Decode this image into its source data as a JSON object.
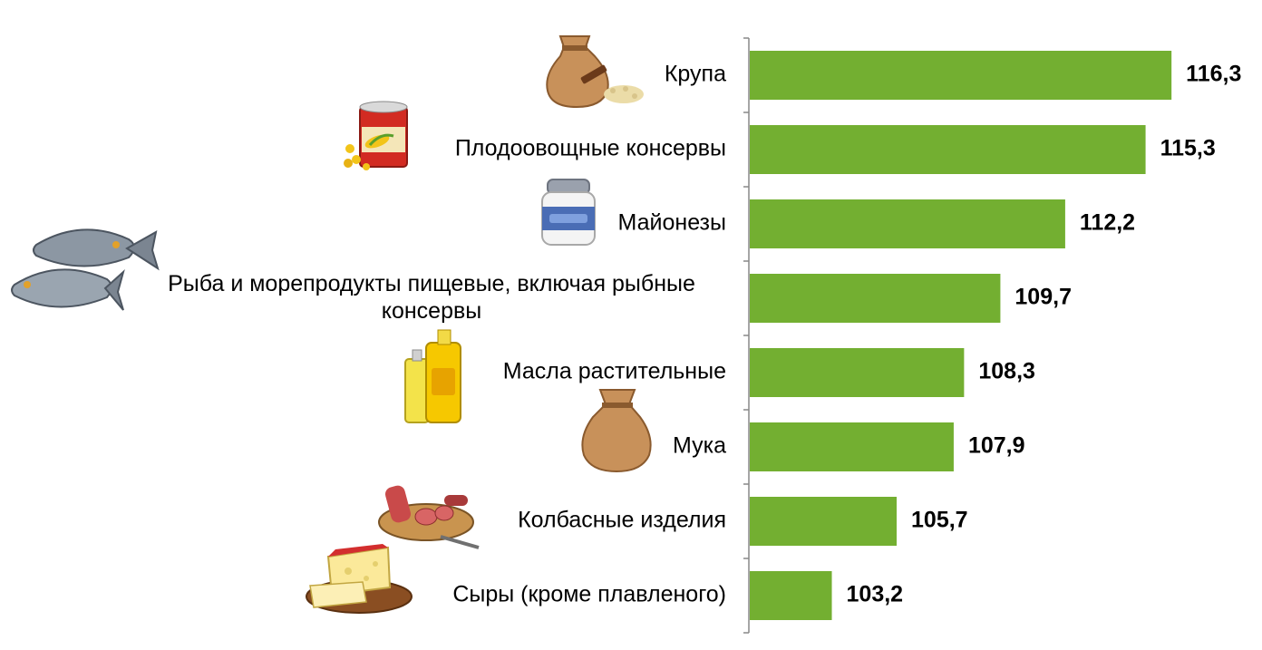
{
  "chart_data": {
    "type": "bar",
    "orientation": "horizontal",
    "categories": [
      "Крупа",
      "Плодоовощные консервы",
      "Майонезы",
      "Рыба и морепродукты пищевые, включая рыбные консервы",
      "Масла растительные",
      "Мука",
      "Колбасные изделия",
      "Сыры (кроме плавленого)"
    ],
    "values": [
      116.3,
      115.3,
      112.2,
      109.7,
      108.3,
      107.9,
      105.7,
      103.2
    ],
    "value_labels": [
      "116,3",
      "115,3",
      "112,2",
      "109,7",
      "108,3",
      "107,9",
      "105,7",
      "103,2"
    ],
    "xlim": [
      100,
      120
    ],
    "grid": false,
    "legend": "none",
    "icons": [
      "grain-sack-icon",
      "canned-corn-icon",
      "mayonnaise-jar-icon",
      "fish-icon",
      "oil-bottles-icon",
      "flour-sack-icon",
      "sausage-platter-icon",
      "cheese-board-icon"
    ],
    "colors": {
      "bar": "#73AF31",
      "axis": "#898989",
      "text": "#000000"
    }
  }
}
